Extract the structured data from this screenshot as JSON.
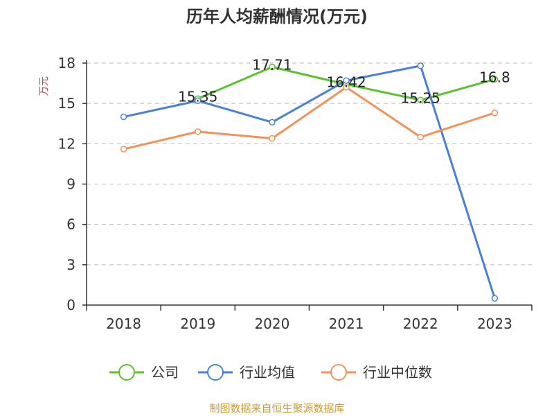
{
  "chart_data": {
    "type": "line",
    "title": "历年人均薪酬情况(万元)",
    "ylabel": "万元",
    "xlabel": "",
    "categories": [
      "2018",
      "2019",
      "2020",
      "2021",
      "2022",
      "2023"
    ],
    "ylim": [
      0,
      18
    ],
    "yticks": [
      0,
      3,
      6,
      9,
      12,
      15,
      18
    ],
    "grid": true,
    "legend_position": "bottom",
    "series": [
      {
        "name": "公司",
        "color": "#5ac12f",
        "values": [
          null,
          15.35,
          17.71,
          16.42,
          15.25,
          16.8
        ],
        "labels": [
          null,
          "15.35",
          "17.71",
          "16.42",
          "15.25",
          "16.8"
        ]
      },
      {
        "name": "行业均值",
        "color": "#4a7fd8",
        "values": [
          14.0,
          15.2,
          13.6,
          16.7,
          17.8,
          0.5
        ],
        "labels": [
          null,
          null,
          null,
          null,
          null,
          null
        ]
      },
      {
        "name": "行业中位数",
        "color": "#f59158",
        "values": [
          11.6,
          12.9,
          12.4,
          16.2,
          12.5,
          14.3
        ],
        "labels": [
          null,
          null,
          null,
          null,
          null,
          null
        ]
      }
    ]
  },
  "source_text": "制图数据来自恒生聚源数据库"
}
